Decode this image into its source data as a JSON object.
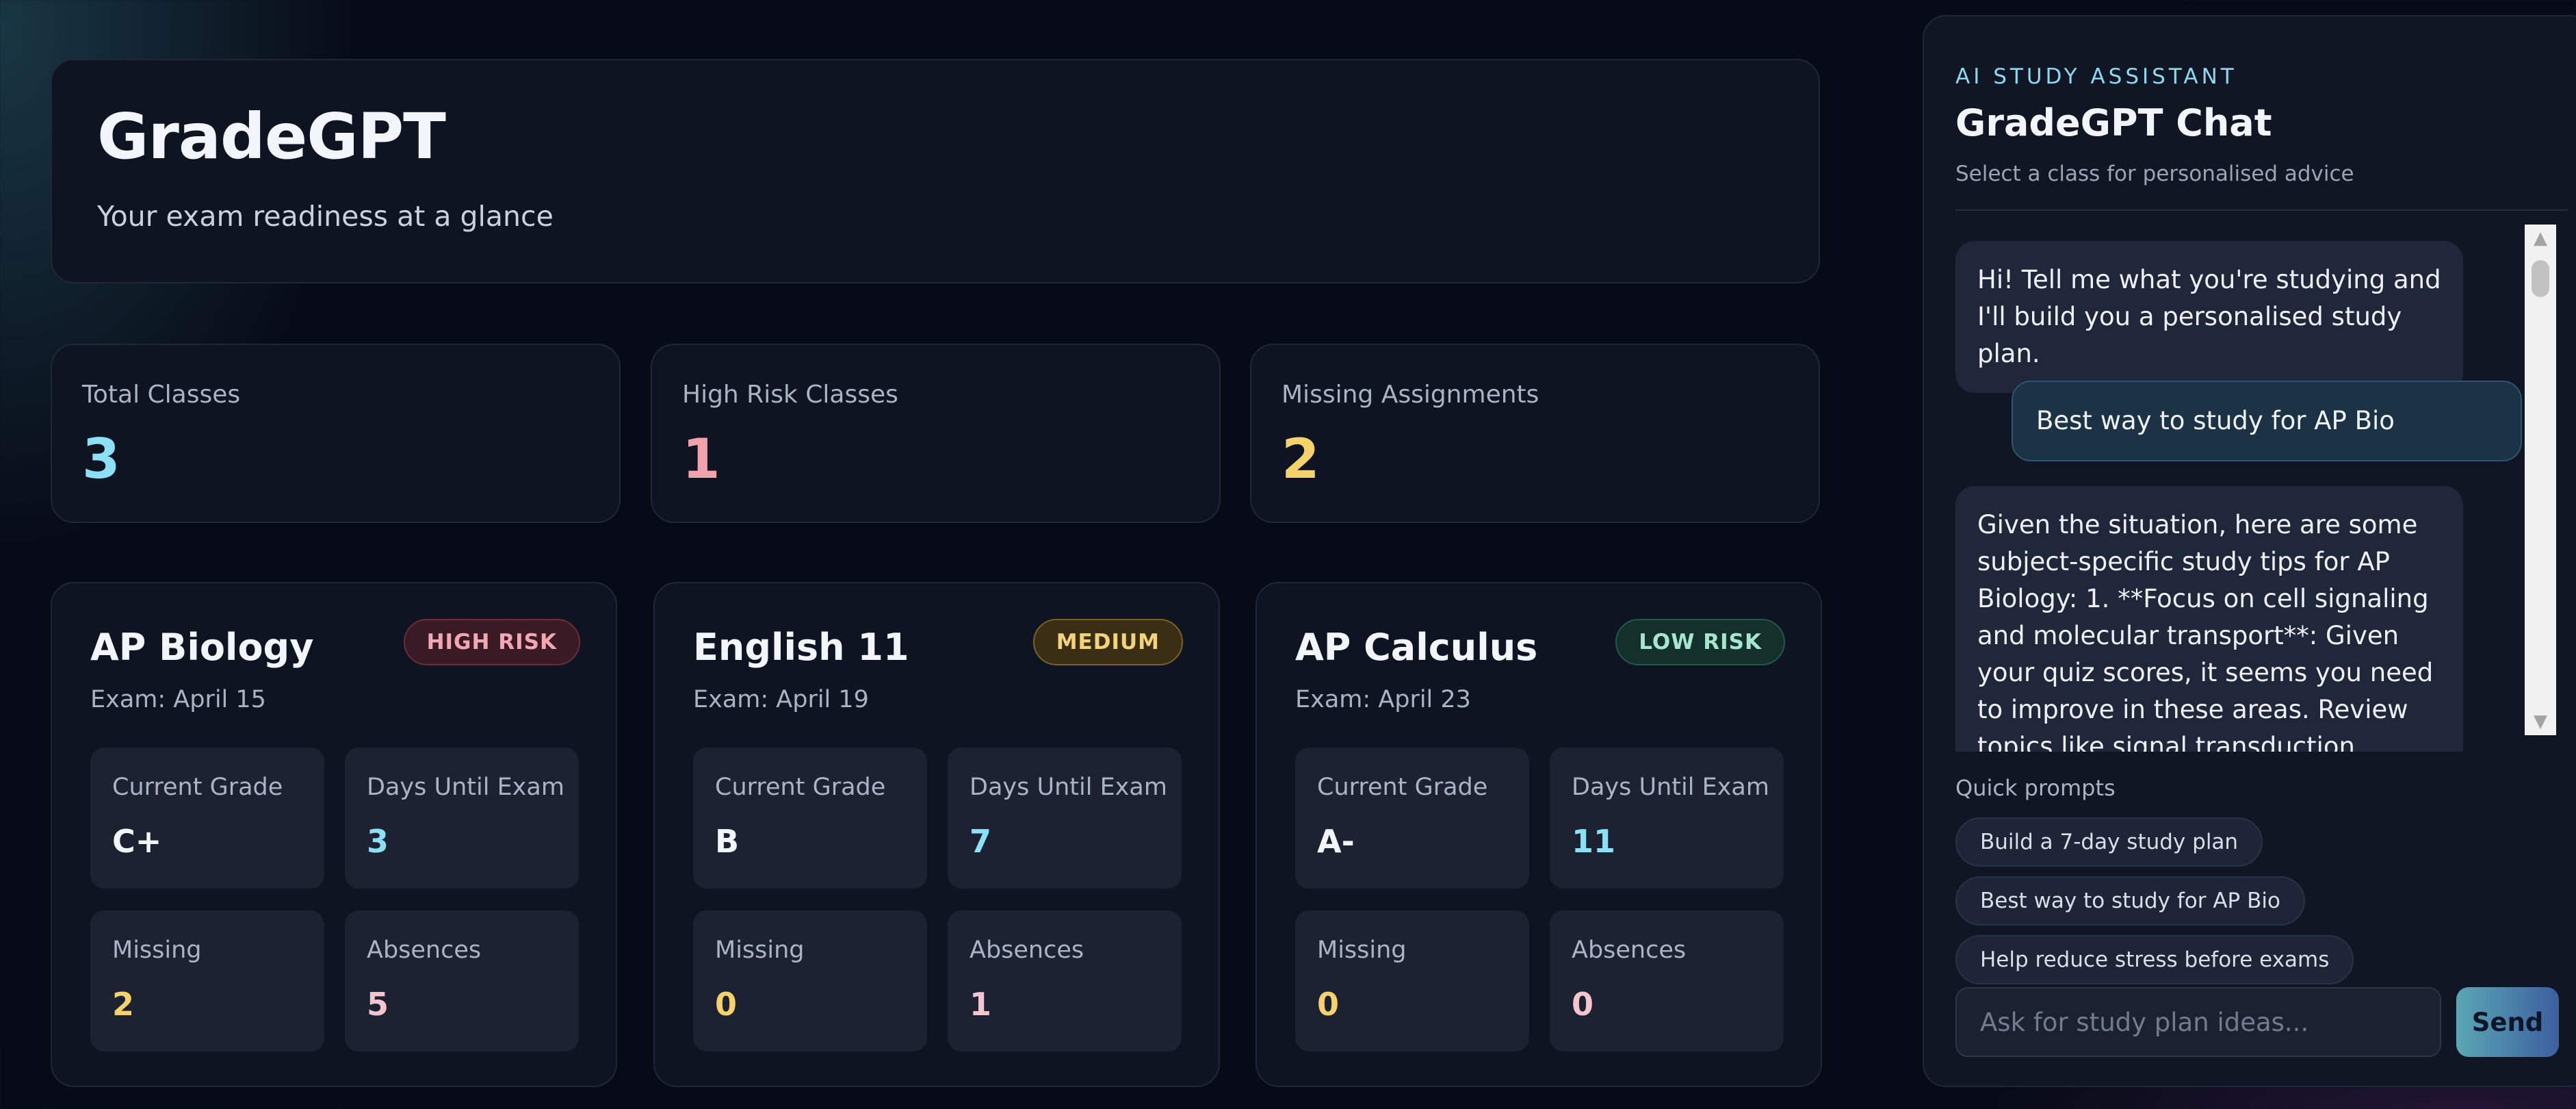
{
  "header": {
    "title": "GradeGPT",
    "subtitle": "Your exam readiness at a glance"
  },
  "stats": [
    {
      "label": "Total Classes",
      "value": "3",
      "color": "#8be0f5"
    },
    {
      "label": "High Risk Classes",
      "value": "1",
      "color": "#f2a2ad"
    },
    {
      "label": "Missing Assignments",
      "value": "2",
      "color": "#f5d36a"
    }
  ],
  "classes": [
    {
      "name": "AP Biology",
      "exam": "Exam: April 15",
      "badge": "HIGH RISK",
      "risk": "high",
      "grade_label": "Current Grade",
      "grade": "C+",
      "days_label": "Days Until Exam",
      "days": "3",
      "missing_label": "Missing",
      "missing": "2",
      "absences_label": "Absences",
      "absences": "5"
    },
    {
      "name": "English 11",
      "exam": "Exam: April 19",
      "badge": "MEDIUM",
      "risk": "medium",
      "grade_label": "Current Grade",
      "grade": "B",
      "days_label": "Days Until Exam",
      "days": "7",
      "missing_label": "Missing",
      "missing": "0",
      "absences_label": "Absences",
      "absences": "1"
    },
    {
      "name": "AP Calculus",
      "exam": "Exam: April 23",
      "badge": "LOW RISK",
      "risk": "low",
      "grade_label": "Current Grade",
      "grade": "A-",
      "days_label": "Days Until Exam",
      "days": "11",
      "missing_label": "Missing",
      "missing": "0",
      "absences_label": "Absences",
      "absences": "0"
    }
  ],
  "colors": {
    "grade": "#f2f5fb",
    "days": "#8be0f5",
    "missing": "#f5d36a",
    "absences": "#f4c4cf"
  },
  "chat": {
    "eyebrow": "AI STUDY ASSISTANT",
    "title": "GradeGPT Chat",
    "subtitle": "Select a class for personalised advice",
    "messages": [
      {
        "role": "bot",
        "text": "Hi! Tell me what you're studying and I'll build you a personalised study plan."
      },
      {
        "role": "user",
        "text": "Best way to study for AP Bio"
      },
      {
        "role": "bot",
        "text": "Given the situation, here are some subject-specific study tips for AP Biology: 1. **Focus on cell signaling and molecular transport**: Given your quiz scores, it seems you need to improve in these areas. Review topics like signal transduction pathways, G-proteins, and"
      }
    ],
    "quick_prompts_label": "Quick prompts",
    "quick_prompts": [
      "Build a 7-day study plan",
      "Best way to study for AP Bio",
      "Help reduce stress before exams"
    ],
    "input_placeholder": "Ask for study plan ideas...",
    "send_label": "Send"
  }
}
